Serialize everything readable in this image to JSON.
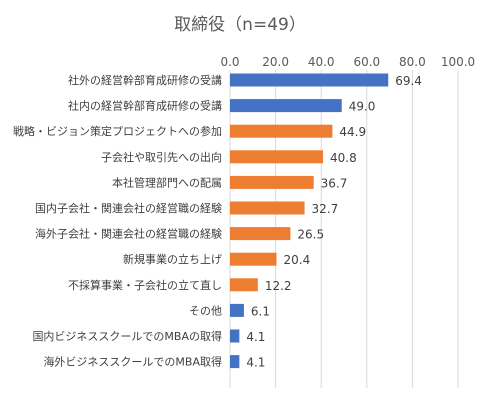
{
  "chart_data": {
    "type": "bar",
    "orientation": "horizontal",
    "title": "取締役（n=49）",
    "xlim": [
      0,
      100
    ],
    "ticks": [
      0,
      20,
      40,
      60,
      80,
      100
    ],
    "tick_labels": [
      "0.0",
      "20.0",
      "40.0",
      "60.0",
      "80.0",
      "100.0"
    ],
    "grid": true,
    "axis_position": "top",
    "colors": {
      "blue": "#4472c4",
      "orange": "#ed7d31"
    },
    "categories": [
      "社外の経営幹部育成研修の受講",
      "社内の経営幹部育成研修の受講",
      "戦略・ビジョン策定プロジェクトへの参加",
      "子会社や取引先への出向",
      "本社管理部門への配属",
      "国内子会社・関連会社の経営職の経験",
      "海外子会社・関連会社の経営職の経験",
      "新規事業の立ち上げ",
      "不採算事業・子会社の立て直し",
      "その他",
      "国内ビジネススクールでのMBAの取得",
      "海外ビジネススクールでのMBA取得"
    ],
    "values": [
      69.4,
      49.0,
      44.9,
      40.8,
      36.7,
      32.7,
      26.5,
      20.4,
      12.2,
      6.1,
      4.1,
      4.1
    ],
    "value_labels": [
      "69.4",
      "49.0",
      "44.9",
      "40.8",
      "36.7",
      "32.7",
      "26.5",
      "20.4",
      "12.2",
      "6.1",
      "4.1",
      "4.1"
    ],
    "bar_colors": [
      "blue",
      "blue",
      "orange",
      "orange",
      "orange",
      "orange",
      "orange",
      "orange",
      "orange",
      "blue",
      "blue",
      "blue"
    ]
  }
}
